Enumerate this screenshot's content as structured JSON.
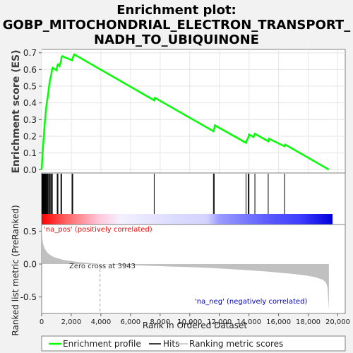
{
  "chart_data": {
    "type": "line",
    "title": "Enrichment plot: GOBP_MITOCHONDRIAL_ELECTRON_TRANSPORT_ NADH_TO_UBIQUINONE",
    "title_lines": [
      "Enrichment plot:",
      "GOBP_MITOCHONDRIAL_ELECTRON_TRANSPORT_",
      "NADH_TO_UBIQUINONE"
    ],
    "top_panel": {
      "ylabel": "Enrichment score (ES)",
      "ylim": [
        -0.02,
        0.72
      ],
      "yticks": [
        0.0,
        0.1,
        0.2,
        0.3,
        0.4,
        0.5,
        0.6,
        0.7
      ],
      "ytick_labels": [
        "0.0",
        "0.1",
        "0.2",
        "0.3",
        "0.4",
        "0.5",
        "0.6",
        "0.7"
      ],
      "grid": true,
      "series": [
        {
          "name": "Enrichment profile",
          "color": "#00ff00",
          "x": [
            0,
            40,
            80,
            120,
            160,
            200,
            240,
            280,
            320,
            360,
            400,
            450,
            500,
            550,
            600,
            650,
            700,
            750,
            1000,
            1050,
            1100,
            1200,
            1300,
            1350,
            1400,
            1500,
            2050,
            2100,
            2150,
            2200,
            7600,
            7650,
            11600,
            11650,
            11700,
            13800,
            13850,
            13950,
            14000,
            14300,
            14400,
            15300,
            15350,
            16400,
            16450,
            19400
          ],
          "y": [
            0.0,
            0.06,
            0.12,
            0.17,
            0.22,
            0.27,
            0.31,
            0.35,
            0.38,
            0.41,
            0.43,
            0.46,
            0.5,
            0.53,
            0.55,
            0.57,
            0.6,
            0.61,
            0.595,
            0.62,
            0.63,
            0.62,
            0.65,
            0.675,
            0.68,
            0.675,
            0.655,
            0.67,
            0.68,
            0.69,
            0.415,
            0.43,
            0.23,
            0.245,
            0.265,
            0.16,
            0.175,
            0.19,
            0.21,
            0.195,
            0.215,
            0.17,
            0.185,
            0.14,
            0.15,
            0.0
          ]
        }
      ]
    },
    "hits_panel": {
      "hit_color": "#000000",
      "hit_positions": [
        20,
        50,
        80,
        110,
        140,
        170,
        200,
        240,
        280,
        320,
        360,
        400,
        440,
        500,
        560,
        620,
        680,
        720,
        1050,
        1100,
        1300,
        1350,
        2050,
        2100,
        7600,
        11600,
        11650,
        13800,
        13950,
        14000,
        14400,
        15300,
        16400
      ]
    },
    "bottom_panel": {
      "ylabel": "Ranked list metric (PreRanked)",
      "ylim": [
        -0.75,
        0.6
      ],
      "yticks": [
        -0.5,
        0.0,
        0.5
      ],
      "ytick_labels": [
        "-0.5",
        "0.0",
        "0.5"
      ],
      "series": [
        {
          "name": "Ranking metric scores",
          "color": "#c0c0c0",
          "x": [
            0,
            50,
            100,
            200,
            300,
            400,
            500,
            700,
            900,
            1200,
            1500,
            2000,
            2500,
            3000,
            3500,
            3943,
            5000,
            7000,
            9000,
            11000,
            13000,
            15000,
            16000,
            17000,
            18000,
            18500,
            19000,
            19200,
            19300,
            19400
          ],
          "y": [
            0.58,
            0.38,
            0.3,
            0.24,
            0.2,
            0.17,
            0.15,
            0.12,
            0.1,
            0.08,
            0.06,
            0.045,
            0.03,
            0.02,
            0.01,
            0.0,
            -0.01,
            -0.025,
            -0.04,
            -0.055,
            -0.08,
            -0.11,
            -0.13,
            -0.15,
            -0.18,
            -0.2,
            -0.24,
            -0.28,
            -0.35,
            -0.7
          ]
        }
      ],
      "zero_cross_x": 3943,
      "annotations": {
        "zero_cross": "Zero cross at 3943",
        "na_pos": "'na_pos' (positively correlated)",
        "na_neg": "'na_neg' (negatively correlated)"
      }
    },
    "xlabel": "Rank in Ordered Dataset",
    "xlim": [
      0,
      20500
    ],
    "xticks": [
      0,
      2000,
      4000,
      6000,
      8000,
      10000,
      12000,
      14000,
      16000,
      18000,
      20000
    ],
    "xtick_labels": [
      "0",
      "2,000",
      "4,000",
      "6,000",
      "8,000",
      "10,000",
      "12,000",
      "14,000",
      "16,000",
      "18,000",
      "20,000"
    ],
    "legend": {
      "placement": "bottom",
      "entries": [
        "Enrichment profile",
        "Hits",
        "Ranking metric scores"
      ],
      "colors": [
        "#00ff00",
        "#000000",
        "#c0c0c0"
      ]
    },
    "colors": {
      "plot_background": "#ffffff",
      "page_background": "#f2f2f2",
      "positive_band": "#ff0000",
      "negative_band": "#0000ff",
      "pos_label": "#ff0000",
      "neg_label": "#0000ff"
    }
  }
}
